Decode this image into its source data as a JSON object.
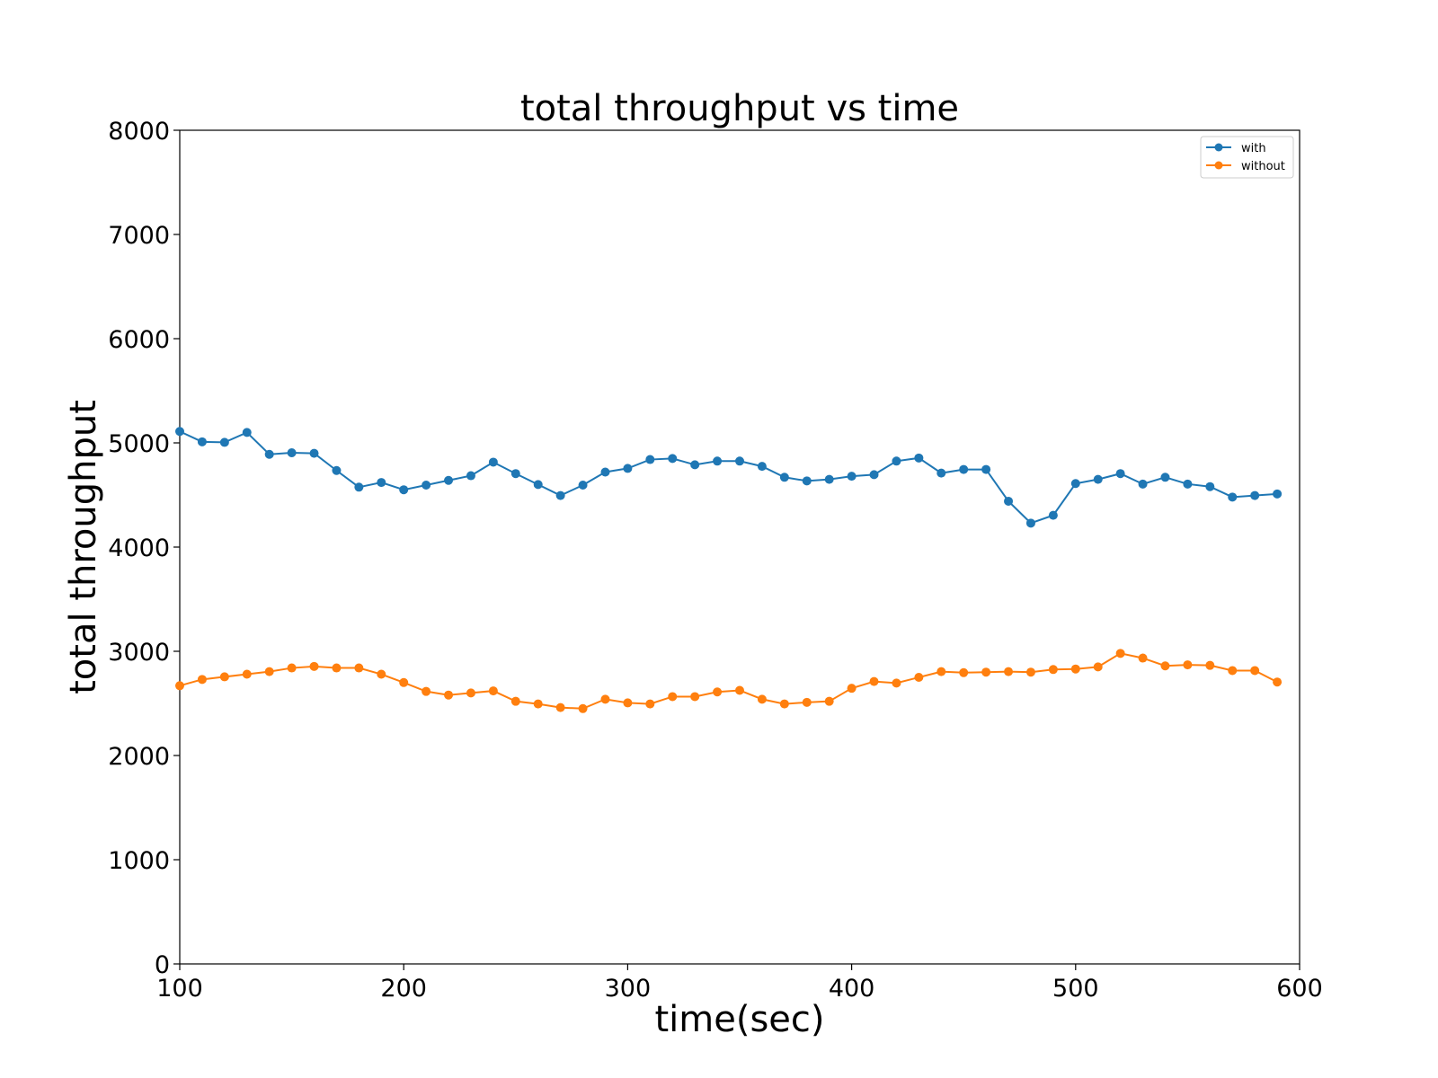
{
  "chart_data": {
    "type": "line",
    "title": "total throughput vs time",
    "xlabel": "time(sec)",
    "ylabel": "total throughput",
    "xlim": [
      100,
      600
    ],
    "ylim": [
      0,
      8000
    ],
    "x_ticks": [
      100,
      200,
      300,
      400,
      500,
      600
    ],
    "y_ticks": [
      0,
      1000,
      2000,
      3000,
      4000,
      5000,
      6000,
      7000,
      8000
    ],
    "grid": false,
    "legend_position": "top-right",
    "x": [
      100,
      110,
      120,
      130,
      140,
      150,
      160,
      170,
      180,
      190,
      200,
      210,
      220,
      230,
      240,
      250,
      260,
      270,
      280,
      290,
      300,
      310,
      320,
      330,
      340,
      350,
      360,
      370,
      380,
      390,
      400,
      410,
      420,
      430,
      440,
      450,
      460,
      470,
      480,
      490,
      500,
      510,
      520,
      530,
      540,
      550,
      560,
      570,
      580,
      590
    ],
    "series": [
      {
        "name": "with",
        "color": "#1f77b4",
        "values": [
          5110,
          5010,
          5005,
          5100,
          4890,
          4905,
          4900,
          4735,
          4575,
          4620,
          4550,
          4595,
          4640,
          4685,
          4815,
          4705,
          4600,
          4495,
          4595,
          4720,
          4755,
          4840,
          4850,
          4790,
          4825,
          4825,
          4775,
          4670,
          4635,
          4650,
          4680,
          4695,
          4825,
          4855,
          4710,
          4745,
          4745,
          4440,
          4230,
          4305,
          4610,
          4650,
          4705,
          4605,
          4670,
          4605,
          4580,
          4480,
          4495,
          4510
        ]
      },
      {
        "name": "without",
        "color": "#ff7f0e",
        "values": [
          2670,
          2730,
          2755,
          2780,
          2805,
          2840,
          2855,
          2840,
          2840,
          2780,
          2700,
          2615,
          2580,
          2600,
          2620,
          2520,
          2495,
          2460,
          2450,
          2540,
          2505,
          2495,
          2565,
          2565,
          2610,
          2625,
          2540,
          2495,
          2510,
          2520,
          2645,
          2710,
          2695,
          2750,
          2805,
          2795,
          2800,
          2805,
          2800,
          2825,
          2830,
          2850,
          2980,
          2935,
          2860,
          2870,
          2865,
          2815,
          2815,
          2705
        ]
      }
    ]
  }
}
